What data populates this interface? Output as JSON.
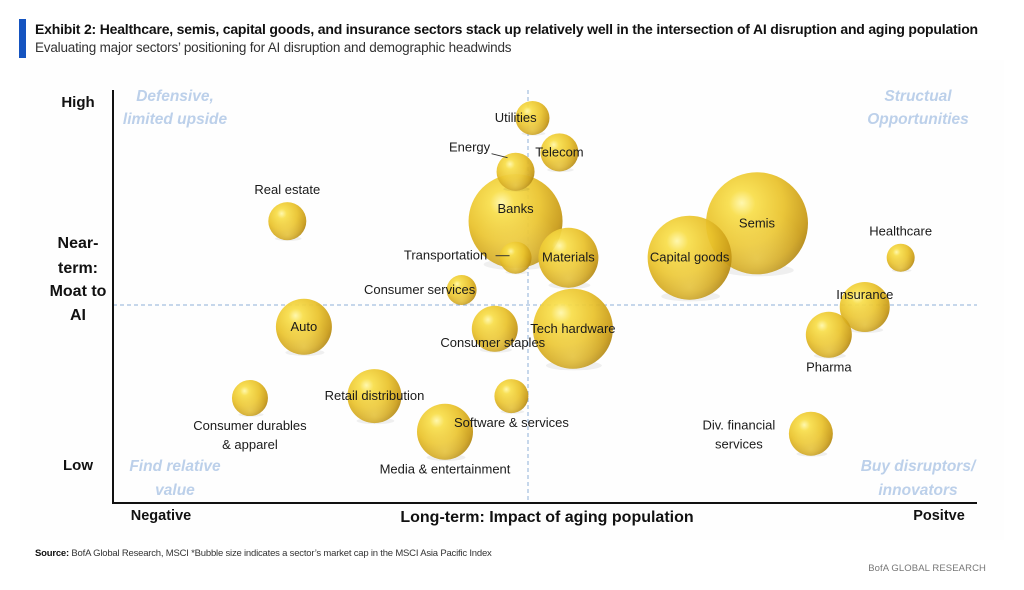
{
  "header": {
    "title": "Exhibit 2: Healthcare, semis, capital goods, and insurance sectors stack up relatively well in the intersection of AI disruption and aging population",
    "subtitle": "Evaluating major sectors’ positioning for AI disruption and demographic headwinds",
    "accent_color": "#1554c0"
  },
  "footer": {
    "source_label": "Source:",
    "source_text": " BofA Global Research, MSCI *Bubble size indicates a sector’s market cap in the MSCI Asia Pacific Index",
    "brand": "BofA GLOBAL RESEARCH"
  },
  "chart_data": {
    "type": "scatter",
    "subtype": "bubble",
    "title": "Exhibit 2: Healthcare, semis, capital goods, and insurance sectors stack up relatively well in the intersection of AI disruption and aging population",
    "xlabel": "Long-term: Impact of aging population",
    "ylabel": [
      "Near-",
      "term:",
      "Moat to",
      "AI"
    ],
    "x_tick_labels": {
      "min": "Negative",
      "max": "Positve"
    },
    "y_tick_labels": {
      "max": "High",
      "min": "Low"
    },
    "xlim": [
      -1,
      1
    ],
    "ylim": [
      -1,
      1
    ],
    "grid": false,
    "reference_lines": {
      "x": 0,
      "y": 0,
      "style": "dashed"
    },
    "bubble_color": "#e8c22a",
    "quadrant_color": "#bcd0ea",
    "quadrants": [
      {
        "position": "top-left",
        "lines": [
          "Defensive,",
          "limited upside"
        ]
      },
      {
        "position": "top-right",
        "lines": [
          "Structual",
          "Opportunities"
        ]
      },
      {
        "position": "bottom-left",
        "lines": [
          "Find relative",
          "value"
        ]
      },
      {
        "position": "bottom-right",
        "lines": [
          "Buy disruptors/",
          "innovators"
        ]
      }
    ],
    "size_note": "Bubble size indicates a sector's market cap in the MSCI Asia Pacific Index (relative)",
    "points": [
      {
        "name": "Utilities",
        "x": 0.01,
        "y": 0.87,
        "size": 17,
        "label_lines": [
          "Utilities"
        ],
        "label_pos": "left-over"
      },
      {
        "name": "Telecom",
        "x": 0.07,
        "y": 0.71,
        "size": 19,
        "label_lines": [
          "Telecom"
        ],
        "label_pos": "center"
      },
      {
        "name": "Energy",
        "x": -0.03,
        "y": 0.62,
        "size": 19,
        "label_lines": [
          "Energy"
        ],
        "label_pos": "upper-left-leader"
      },
      {
        "name": "Banks",
        "x": -0.03,
        "y": 0.39,
        "size": 47,
        "label_lines": [
          "Banks"
        ],
        "label_pos": "center-up"
      },
      {
        "name": "Transportation",
        "x": -0.03,
        "y": 0.22,
        "size": 16,
        "label_lines": [
          "Transportation"
        ],
        "label_pos": "left-leader"
      },
      {
        "name": "Materials",
        "x": 0.09,
        "y": 0.22,
        "size": 30,
        "label_lines": [
          "Materials"
        ],
        "label_pos": "center"
      },
      {
        "name": "Semis",
        "x": 0.51,
        "y": 0.38,
        "size": 51,
        "label_lines": [
          "Semis"
        ],
        "label_pos": "center"
      },
      {
        "name": "Capital goods",
        "x": 0.36,
        "y": 0.22,
        "size": 42,
        "label_lines": [
          "Capital goods"
        ],
        "label_pos": "center"
      },
      {
        "name": "Healthcare",
        "x": 0.83,
        "y": 0.22,
        "size": 14,
        "label_lines": [
          "Healthcare"
        ],
        "label_pos": "above"
      },
      {
        "name": "Insurance",
        "x": 0.75,
        "y": -0.01,
        "size": 25,
        "label_lines": [
          "Insurance"
        ],
        "label_pos": "center-up"
      },
      {
        "name": "Pharma",
        "x": 0.67,
        "y": -0.15,
        "size": 23,
        "label_lines": [
          "Pharma"
        ],
        "label_pos": "below"
      },
      {
        "name": "Tech hardware",
        "x": 0.1,
        "y": -0.12,
        "size": 40,
        "label_lines": [
          "Tech hardware"
        ],
        "label_pos": "center"
      },
      {
        "name": "Consumer services",
        "x": -0.16,
        "y": 0.07,
        "size": 15,
        "label_lines": [
          "Consumer services"
        ],
        "label_pos": "left-over"
      },
      {
        "name": "Consumer staples",
        "x": -0.08,
        "y": -0.12,
        "size": 23,
        "label_lines": [
          "Consumer staples"
        ],
        "label_pos": "below-over"
      },
      {
        "name": "Auto",
        "x": -0.54,
        "y": -0.11,
        "size": 28,
        "label_lines": [
          "Auto"
        ],
        "label_pos": "center"
      },
      {
        "name": "Real estate",
        "x": -0.58,
        "y": 0.39,
        "size": 19,
        "label_lines": [
          "Real estate"
        ],
        "label_pos": "above"
      },
      {
        "name": "Consumer durables & apparel",
        "x": -0.67,
        "y": -0.47,
        "size": 18,
        "label_lines": [
          "Consumer durables",
          "& apparel"
        ],
        "label_pos": "below"
      },
      {
        "name": "Retail distribution",
        "x": -0.37,
        "y": -0.46,
        "size": 27,
        "label_lines": [
          "Retail distribution"
        ],
        "label_pos": "center"
      },
      {
        "name": "Software & services",
        "x": -0.04,
        "y": -0.46,
        "size": 17,
        "label_lines": [
          "Software & services"
        ],
        "label_pos": "below"
      },
      {
        "name": "Media & entertainment",
        "x": -0.2,
        "y": -0.64,
        "size": 28,
        "label_lines": [
          "Media & entertainment"
        ],
        "label_pos": "below"
      },
      {
        "name": "Div. financial services",
        "x": 0.63,
        "y": -0.65,
        "size": 22,
        "label_lines": [
          "Div. financial",
          "services"
        ],
        "label_pos": "left"
      }
    ]
  }
}
